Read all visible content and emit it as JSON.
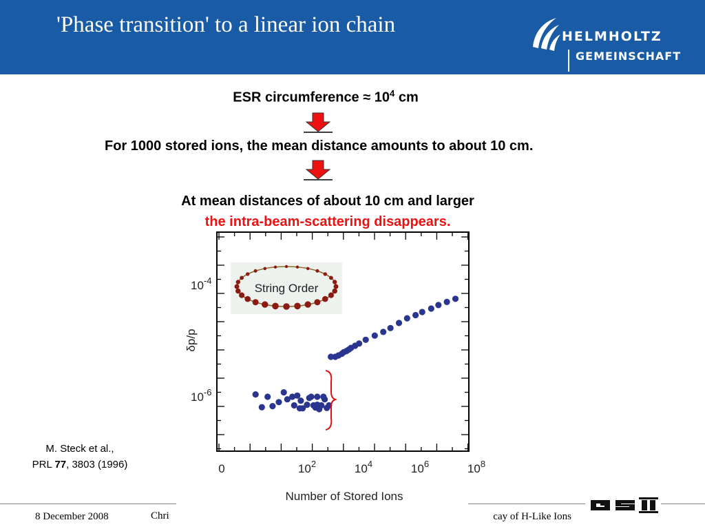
{
  "header": {
    "title": "'Phase transition' to a linear ion chain",
    "logo": {
      "line1": "HELMHOLTZ",
      "line2": "GEMEINSCHAFT",
      "icon": "helmholtz-logo-icon"
    }
  },
  "body": {
    "line1": {
      "text": "ESR circumference ≈ 10",
      "sup": "4",
      "suffix": " cm"
    },
    "line2": "For 1000 stored ions, the mean distance amounts to about 10 cm.",
    "line3": "At mean distances of about 10 cm and larger",
    "line4": "the intra-beam-scattering disappears.",
    "arrow_icon": "red-down-arrow-icon"
  },
  "citation": {
    "line1": "M. Steck et al.,",
    "line2_prefix": "PRL ",
    "line2_volume": "77",
    "line2_suffix": ", 3803 (1996)"
  },
  "footer": {
    "date": "8 December 2008",
    "author_fragment": "Chri",
    "talk_fragment": "cay of H-Like Ions",
    "logo": "gsi-logo-icon"
  },
  "colors": {
    "header_bg": "#1a5ba6",
    "accent_red": "#ee1111",
    "point_color": "#2a3590"
  },
  "chart_data": {
    "type": "scatter",
    "xlabel": "Number of Stored Ions",
    "ylabel": "δp/p",
    "x_scale": "log",
    "y_scale": "log",
    "x_ticks": [
      {
        "label": "0",
        "value": 0
      },
      {
        "label": "10",
        "exp": "2",
        "value": 100
      },
      {
        "label": "10",
        "exp": "4",
        "value": 10000
      },
      {
        "label": "10",
        "exp": "6",
        "value": 1000000
      },
      {
        "label": "10",
        "exp": "8",
        "value": 100000000
      }
    ],
    "y_ticks": [
      {
        "label": "10",
        "exp": "-4",
        "value": 0.0001
      },
      {
        "label": "10",
        "exp": "-6",
        "value": 1e-06
      }
    ],
    "inset_label": "String Order",
    "series": [
      {
        "points": [
          [
            1.5,
            1.1e-06
          ],
          [
            2.5,
            6.5e-07
          ],
          [
            4,
            1e-06
          ],
          [
            6,
            6.8e-07
          ],
          [
            10,
            8e-07
          ],
          [
            15,
            1.2e-06
          ],
          [
            20,
            9e-07
          ],
          [
            30,
            1e-06
          ],
          [
            35,
            7e-07
          ],
          [
            45,
            1.05e-06
          ],
          [
            55,
            6.2e-07
          ],
          [
            60,
            8.5e-07
          ],
          [
            70,
            6.2e-07
          ],
          [
            100,
            7.2e-07
          ],
          [
            120,
            9.5e-07
          ],
          [
            140,
            1e-06
          ],
          [
            170,
            7e-07
          ],
          [
            200,
            6.4e-07
          ],
          [
            230,
            7.2e-07
          ],
          [
            270,
            6e-07
          ],
          [
            320,
            7e-07
          ],
          [
            230,
            1e-06
          ],
          [
            380,
            1e-06
          ],
          [
            420,
            9e-07
          ],
          [
            500,
            6.3e-07
          ],
          [
            600,
            7e-07
          ],
          [
            700,
            5.2e-06
          ],
          [
            1000,
            5.2e-06
          ],
          [
            1300,
            5.5e-06
          ],
          [
            1700,
            5.9e-06
          ],
          [
            2000,
            6.3e-06
          ],
          [
            2500,
            6.6e-06
          ],
          [
            3000,
            7e-06
          ],
          [
            3600,
            7.5e-06
          ],
          [
            5000,
            8.2e-06
          ],
          [
            7000,
            9e-06
          ],
          [
            12000,
            1.05e-05
          ],
          [
            25000,
            1.25e-05
          ],
          [
            50000,
            1.45e-05
          ],
          [
            90000,
            1.7e-05
          ],
          [
            180000,
            2.1e-05
          ],
          [
            350000,
            2.55e-05
          ],
          [
            700000,
            2.9e-05
          ],
          [
            1200000,
            3.3e-05
          ],
          [
            2500000,
            3.8e-05
          ],
          [
            4500000,
            4.4e-05
          ],
          [
            9000000,
            5e-05
          ],
          [
            18000000,
            5.7e-05
          ]
        ]
      }
    ]
  }
}
